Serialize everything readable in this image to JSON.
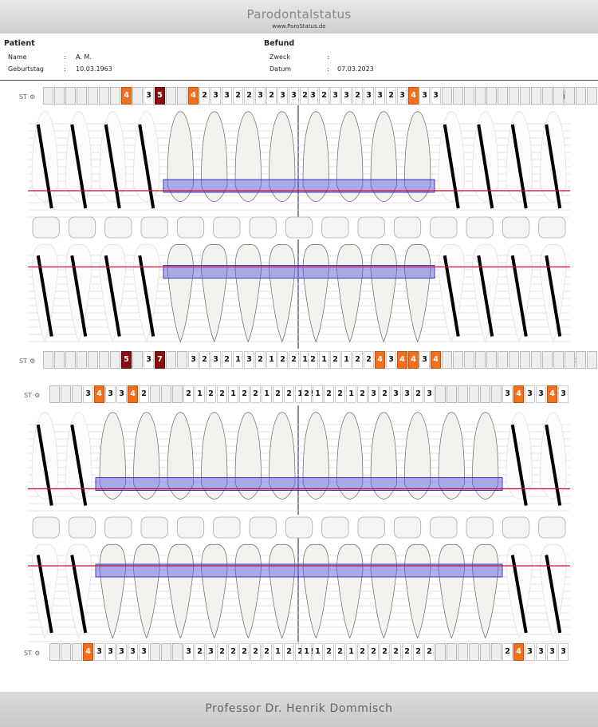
{
  "header": {
    "title": "Parodontalstatus",
    "url": "www.ParoStatus.de"
  },
  "patient": {
    "heading": "Patient",
    "name_label": "Name",
    "name_value": "A. M.",
    "dob_label": "Geburtstag",
    "dob_value": "10.03.1963"
  },
  "befund": {
    "heading": "Befund",
    "zweck_label": "Zweck",
    "zweck_value": "",
    "datum_label": "Datum",
    "datum_value": "07.03.2023"
  },
  "st_label": "ST",
  "st_icon": "gear-icon",
  "colors": {
    "orange": "#f07020",
    "red": "#8b0d12",
    "gum": "#c8102e",
    "bone": "#3c3cc8"
  },
  "footer": {
    "text": "Professor Dr. Henrik Dommisch"
  },
  "strips": {
    "upper_buccal_left": [
      "",
      "",
      "",
      "",
      "",
      "",
      "",
      "4",
      "",
      "3",
      "5",
      "",
      "",
      "4",
      "2",
      "3",
      "3",
      "2",
      "2",
      "3",
      "2",
      "3",
      "3",
      "2",
      "2",
      ""
    ],
    "upper_buccal_right": [
      "3",
      "2",
      "3",
      "3",
      "2",
      "3",
      "3",
      "2",
      "3",
      "4",
      "3",
      "3",
      "",
      "",
      "",
      "",
      "",
      "",
      "",
      "",
      "",
      "",
      "",
      "",
      "",
      ""
    ],
    "upper_palatal_left": [
      "",
      "",
      "",
      "",
      "",
      "",
      "",
      "5",
      "",
      "3",
      "7",
      "",
      "",
      "3",
      "2",
      "3",
      "2",
      "1",
      "3",
      "2",
      "1",
      "2",
      "2",
      "1",
      "1",
      ""
    ],
    "upper_palatal_right": [
      "2",
      "1",
      "2",
      "1",
      "2",
      "2",
      "4",
      "3",
      "4",
      "4",
      "3",
      "4",
      "",
      "",
      "",
      "",
      "",
      "",
      "",
      "",
      "",
      "",
      "",
      "",
      "",
      ""
    ],
    "lower_lingual_left": [
      "",
      "",
      "",
      "3",
      "4",
      "3",
      "3",
      "4",
      "2",
      "",
      "",
      "",
      "2",
      "1",
      "2",
      "2",
      "1",
      "2",
      "2",
      "1",
      "2",
      "2",
      "1",
      "2",
      ""
    ],
    "lower_lingual_right": [
      "2",
      "1",
      "2",
      "2",
      "1",
      "2",
      "3",
      "2",
      "3",
      "3",
      "2",
      "3",
      "",
      "",
      "",
      "",
      "",
      "",
      "3",
      "4",
      "3",
      "3",
      "4",
      "3"
    ],
    "lower_buccal_left": [
      "",
      "",
      "",
      "4",
      "3",
      "3",
      "3",
      "3",
      "3",
      "",
      "",
      "",
      "3",
      "2",
      "3",
      "2",
      "2",
      "2",
      "2",
      "2",
      "1",
      "2",
      "2",
      "2"
    ],
    "lower_buccal_right": [
      "1",
      "1",
      "2",
      "2",
      "1",
      "2",
      "2",
      "2",
      "2",
      "2",
      "2",
      "2",
      "",
      "",
      "",
      "",
      "",
      "",
      "2",
      "4",
      "3",
      "3",
      "3",
      "3"
    ]
  },
  "highlights": {
    "upper_buccal_left": {
      "7": "o",
      "10": "r",
      "13": "o"
    },
    "upper_buccal_right": {
      "9": "o"
    },
    "upper_palatal_left": {
      "7": "r",
      "10": "r"
    },
    "upper_palatal_right": {
      "6": "o",
      "8": "o",
      "9": "o",
      "11": "o"
    },
    "lower_lingual_left": {
      "4": "o",
      "7": "o"
    },
    "lower_lingual_right": {
      "19": "o",
      "22": "o"
    },
    "lower_buccal_left": {
      "3": "o"
    },
    "lower_buccal_right": {
      "19": "o"
    }
  }
}
